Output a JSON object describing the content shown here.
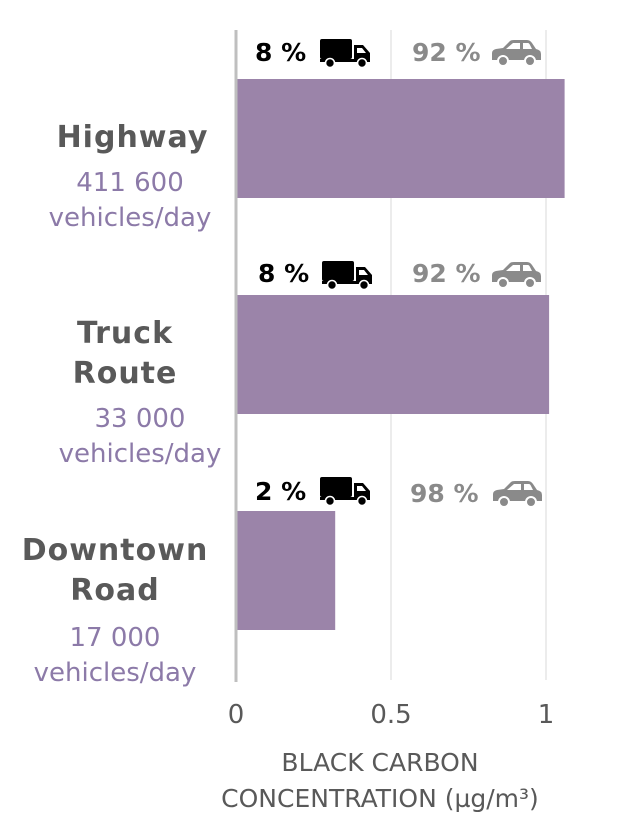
{
  "chart_data": {
    "type": "bar",
    "orientation": "horizontal",
    "categories": [
      {
        "name": "Highway",
        "volume": "411 600",
        "volume_unit": "vehicles/day",
        "value": 1.06,
        "truck_share": "8 %",
        "car_share": "92 %"
      },
      {
        "name": "Truck Route",
        "volume": "33 000",
        "volume_unit": "vehicles/day",
        "value": 1.01,
        "truck_share": "8 %",
        "car_share": "92 %"
      },
      {
        "name": "Downtown Road",
        "volume": "17 000",
        "volume_unit": "vehicles/day",
        "value": 0.32,
        "truck_share": "2 %",
        "car_share": "98 %"
      }
    ],
    "xlabel_line1": "BLACK CARBON",
    "xlabel_line2": "CONCENTRATION (µg/m³)",
    "xlim": [
      0,
      1
    ],
    "ticks": [
      "0",
      "0.5",
      "1"
    ],
    "tick_values": [
      0,
      0.5,
      1
    ],
    "grid": true,
    "colors": {
      "bar": "#9b84a9",
      "grid": "#e5e5e5",
      "axis": "#bfbfbf",
      "truck_icon": "#000000",
      "car_icon": "#8a8a8a"
    },
    "icons": {
      "truck": "truck-icon",
      "car": "car-icon"
    }
  }
}
